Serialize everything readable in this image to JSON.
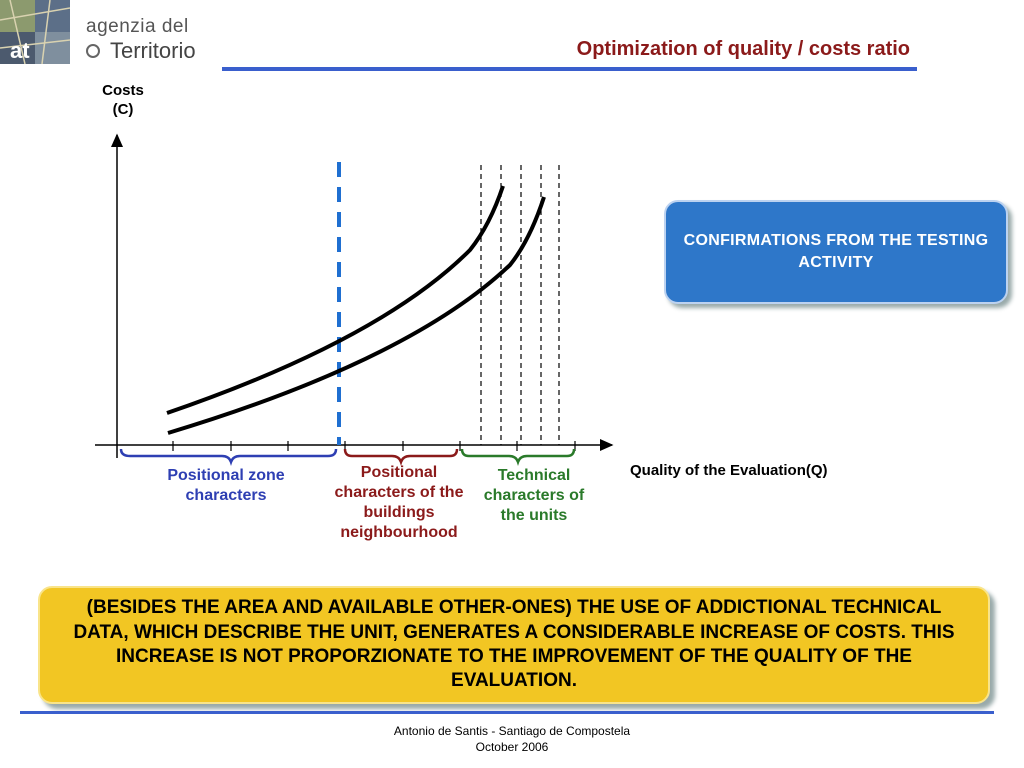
{
  "header": {
    "logo_line1": "agenzia del",
    "logo_line2": "Territorio",
    "logo_icon": "map-photo-logo",
    "title": "Optimization of quality / costs ratio"
  },
  "diagram": {
    "y_axis_label": "Costs\n(C)",
    "x_axis_label": "Quality of the Evaluation(Q)",
    "categories": [
      {
        "label": "Positional zone characters",
        "color": "#2e3fb3"
      },
      {
        "label": "Positional characters of the buildings neighbourhood",
        "color": "#8b1a1a"
      },
      {
        "label": "Technical characters of the units",
        "color": "#2a7a2a"
      }
    ],
    "divider_color": "#1f6fd1"
  },
  "callouts": {
    "confirmations": "CONFIRMATIONS FROM THE TESTING ACTIVITY",
    "note": "(BESIDES THE AREA AND AVAILABLE OTHER-ONES) THE USE OF ADDICTIONAL TECHNICAL DATA, WHICH DESCRIBE THE UNIT, GENERATES A CONSIDERABLE INCREASE OF COSTS. THIS INCREASE IS NOT PROPORZIONATE TO THE IMPROVEMENT OF THE QUALITY OF THE EVALUATION."
  },
  "footer": {
    "line1": "Antonio de Santis - Santiago de Compostela",
    "line2": "October  2006"
  }
}
